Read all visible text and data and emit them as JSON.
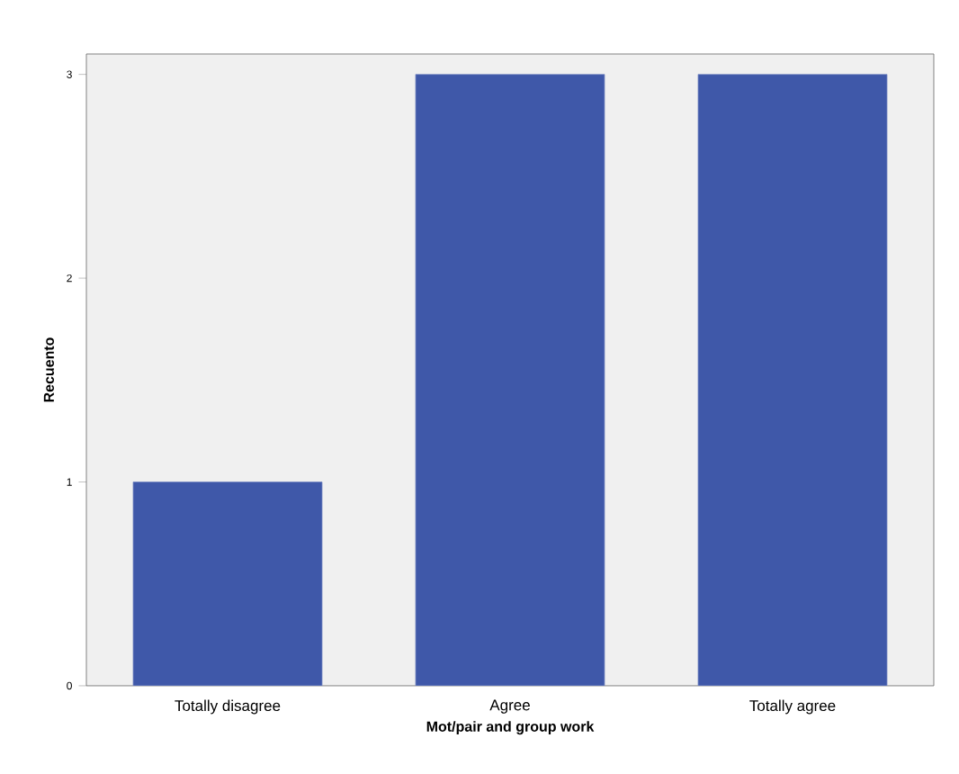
{
  "chart_data": {
    "type": "bar",
    "xlabel": "Mot/pair and group work",
    "ylabel": "Recuento",
    "categories": [
      "Totally disagree",
      "Agree",
      "Totally agree"
    ],
    "values": [
      1,
      3,
      3
    ],
    "color": "#3f58a9",
    "ylim": [
      0,
      3.1
    ],
    "yticks": [
      0,
      1,
      2,
      3
    ]
  }
}
